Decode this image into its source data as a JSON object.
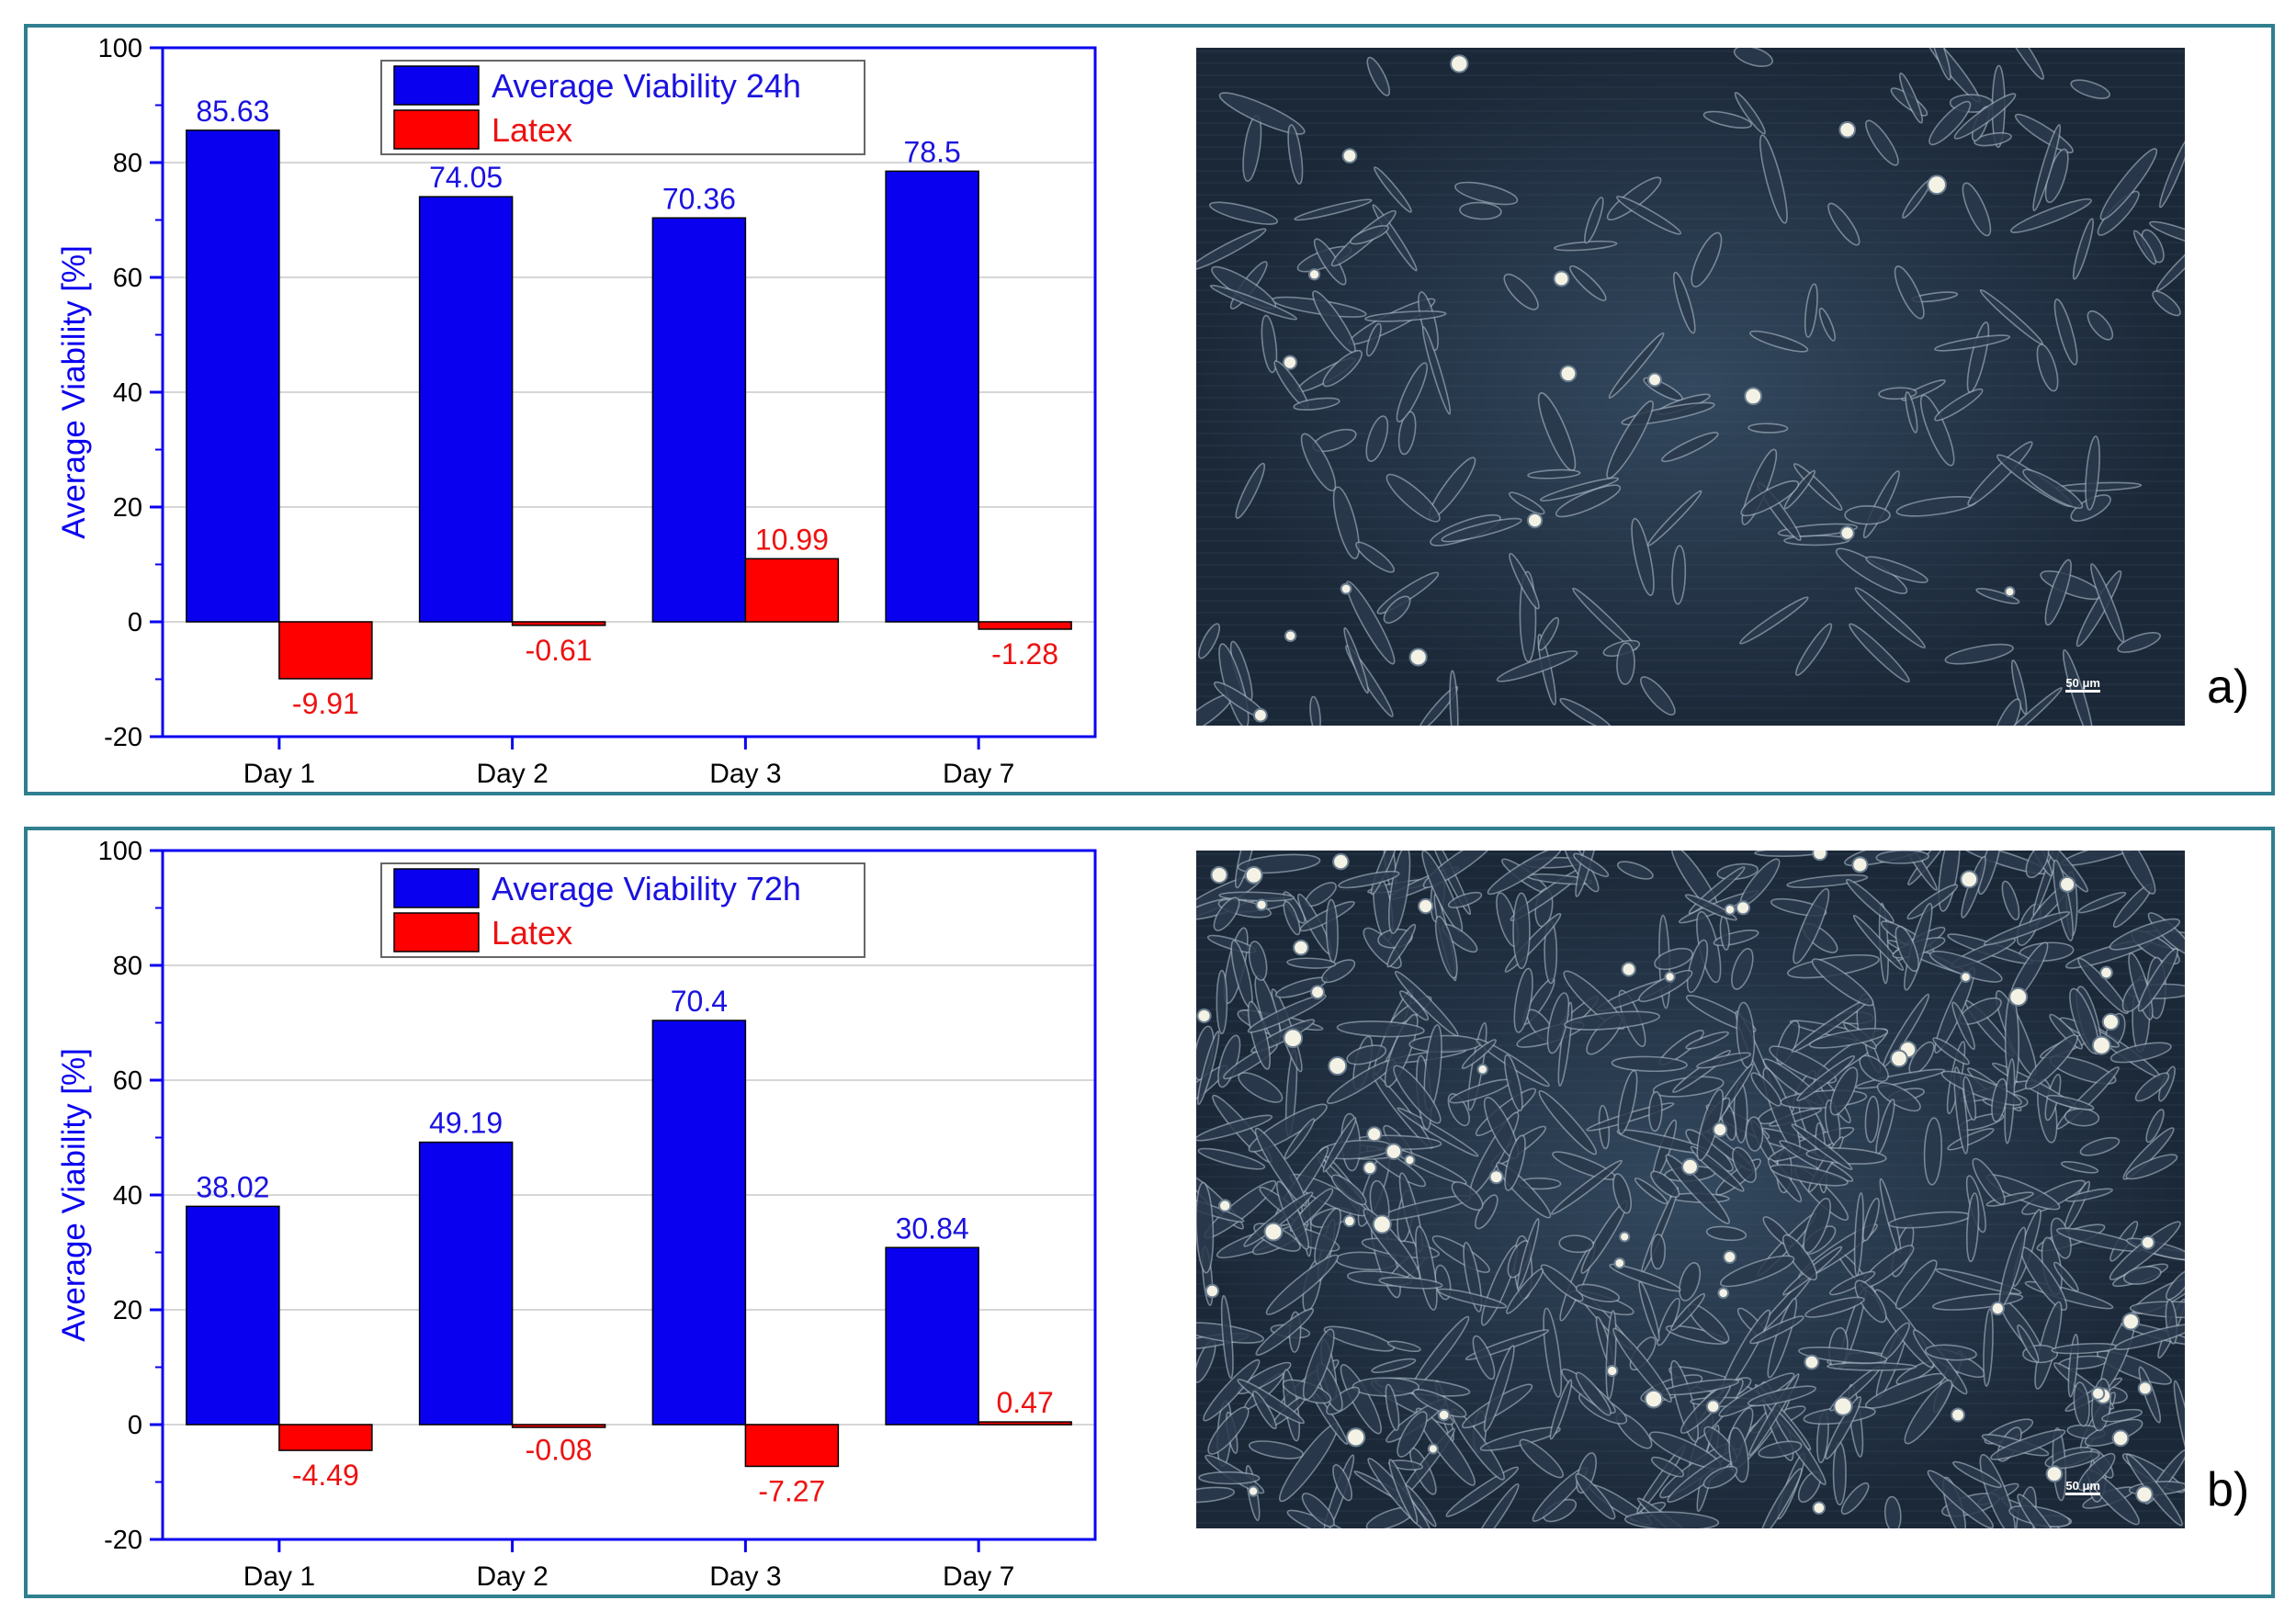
{
  "panels": [
    {
      "label": "a)",
      "image_scale_text": "50 μm",
      "chart_data": {
        "type": "bar",
        "categories": [
          "Day 1",
          "Day 2",
          "Day 3",
          "Day 7"
        ],
        "series": [
          {
            "name": "Average Viability 24h",
            "values": [
              85.63,
              74.05,
              70.36,
              78.5
            ],
            "color": "#0a00f0",
            "label_color": "#1a12e0"
          },
          {
            "name": "Latex",
            "values": [
              -9.91,
              -0.61,
              10.99,
              -1.28
            ],
            "color": "#ff0000",
            "label_color": "#ee1111"
          }
        ],
        "ylabel": "Average Viability [%]",
        "ylim": [
          -20,
          100
        ],
        "yticks": [
          -20,
          0,
          20,
          40,
          60,
          80,
          100
        ],
        "grid": true,
        "legend_position": "top-center",
        "data_labels": [
          [
            "85.63",
            "74.05",
            "70.36",
            "78.5"
          ],
          [
            "-9.91",
            "-0.61",
            "10.99",
            "-1.28"
          ]
        ],
        "axis_color": "#0a00f0"
      }
    },
    {
      "label": "b)",
      "image_scale_text": "50 μm",
      "chart_data": {
        "type": "bar",
        "categories": [
          "Day 1",
          "Day 2",
          "Day 3",
          "Day 7"
        ],
        "series": [
          {
            "name": "Average Viability 72h",
            "values": [
              38.02,
              49.19,
              70.4,
              30.84
            ],
            "color": "#0a00f0",
            "label_color": "#1a12e0"
          },
          {
            "name": "Latex",
            "values": [
              -4.49,
              -0.08,
              -7.27,
              0.47
            ],
            "color": "#ff0000",
            "label_color": "#ee1111"
          }
        ],
        "ylabel": "Average Viability [%]",
        "ylim": [
          -20,
          100
        ],
        "yticks": [
          -20,
          0,
          20,
          40,
          60,
          80,
          100
        ],
        "grid": true,
        "legend_position": "top-center",
        "data_labels": [
          [
            "38.02",
            "49.19",
            "70.4",
            "30.84"
          ],
          [
            "-4.49",
            "-0.08",
            "-7.27",
            "0.47"
          ]
        ],
        "axis_color": "#0a00f0"
      }
    }
  ]
}
